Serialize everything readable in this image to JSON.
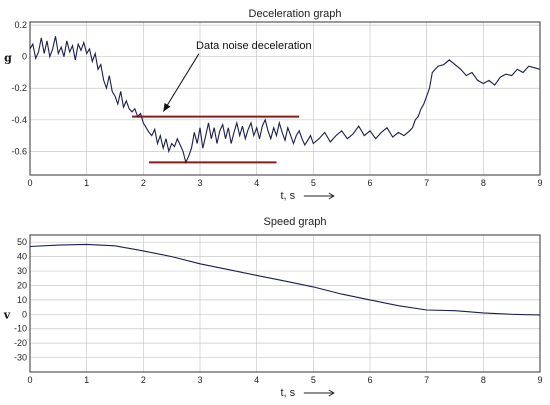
{
  "chart_data": [
    {
      "type": "line",
      "title": "Deceleration graph",
      "ylabel": "g",
      "xlabel": "t, s",
      "xlim": [
        0,
        9
      ],
      "ylim": [
        -0.75,
        0.22
      ],
      "x_ticks": [
        0,
        1,
        2,
        3,
        4,
        5,
        6,
        7,
        8,
        9
      ],
      "y_ticks": [
        0.2,
        0,
        -0.2,
        -0.4,
        -0.6
      ],
      "y_tick_labels": [
        "0.2",
        "0",
        "-0.2",
        "-0.4",
        "-0.6"
      ],
      "grid": true,
      "line_color": "#1a1f4e",
      "series": [
        {
          "x": [
            0,
            0.05,
            0.1,
            0.15,
            0.2,
            0.25,
            0.3,
            0.35,
            0.4,
            0.45,
            0.5,
            0.55,
            0.6,
            0.65,
            0.7,
            0.75,
            0.8,
            0.85,
            0.9,
            0.95,
            1.0,
            1.05,
            1.1,
            1.15,
            1.2,
            1.25,
            1.3,
            1.35,
            1.4,
            1.45,
            1.5,
            1.55,
            1.6,
            1.65,
            1.7,
            1.75,
            1.8,
            1.85,
            1.9,
            1.95,
            2.0,
            2.05,
            2.1,
            2.15,
            2.2,
            2.25,
            2.3,
            2.35,
            2.4,
            2.45,
            2.5,
            2.55,
            2.6,
            2.65,
            2.7,
            2.75,
            2.8,
            2.85,
            2.9,
            2.95,
            3.0,
            3.05,
            3.1,
            3.15,
            3.2,
            3.25,
            3.3,
            3.35,
            3.4,
            3.45,
            3.5,
            3.55,
            3.6,
            3.65,
            3.7,
            3.75,
            3.8,
            3.85,
            3.9,
            3.95,
            4.0,
            4.05,
            4.1,
            4.15,
            4.2,
            4.25,
            4.3,
            4.35,
            4.4,
            4.45,
            4.5,
            4.55,
            4.6,
            4.65,
            4.7,
            4.75,
            4.8,
            4.85,
            4.9,
            4.95,
            5.0,
            5.1,
            5.2,
            5.3,
            5.4,
            5.5,
            5.6,
            5.7,
            5.8,
            5.9,
            6.0,
            6.1,
            6.2,
            6.3,
            6.4,
            6.5,
            6.6,
            6.7,
            6.75,
            6.8,
            6.85,
            6.9,
            6.95,
            7.0,
            7.05,
            7.1,
            7.2,
            7.3,
            7.4,
            7.5,
            7.6,
            7.7,
            7.8,
            7.9,
            8.0,
            8.1,
            8.2,
            8.3,
            8.4,
            8.5,
            8.6,
            8.7,
            8.8,
            8.9,
            9.0
          ],
          "y": [
            0.05,
            0.08,
            -0.01,
            0.03,
            0.12,
            0.02,
            0.1,
            0.0,
            0.05,
            0.13,
            0.02,
            0.06,
            0.0,
            0.1,
            0.03,
            0.07,
            -0.02,
            0.08,
            0.04,
            0.09,
            0.02,
            0.05,
            -0.03,
            0.02,
            -0.08,
            -0.05,
            -0.15,
            -0.2,
            -0.12,
            -0.22,
            -0.25,
            -0.3,
            -0.22,
            -0.32,
            -0.28,
            -0.33,
            -0.35,
            -0.33,
            -0.38,
            -0.36,
            -0.42,
            -0.45,
            -0.48,
            -0.5,
            -0.46,
            -0.55,
            -0.5,
            -0.58,
            -0.52,
            -0.6,
            -0.55,
            -0.57,
            -0.52,
            -0.56,
            -0.6,
            -0.67,
            -0.63,
            -0.58,
            -0.48,
            -0.55,
            -0.45,
            -0.58,
            -0.5,
            -0.42,
            -0.52,
            -0.45,
            -0.55,
            -0.47,
            -0.43,
            -0.52,
            -0.45,
            -0.55,
            -0.48,
            -0.42,
            -0.5,
            -0.44,
            -0.52,
            -0.46,
            -0.42,
            -0.5,
            -0.45,
            -0.52,
            -0.44,
            -0.4,
            -0.47,
            -0.52,
            -0.45,
            -0.5,
            -0.42,
            -0.48,
            -0.53,
            -0.45,
            -0.5,
            -0.55,
            -0.5,
            -0.47,
            -0.52,
            -0.56,
            -0.53,
            -0.5,
            -0.55,
            -0.52,
            -0.48,
            -0.54,
            -0.5,
            -0.47,
            -0.52,
            -0.49,
            -0.44,
            -0.5,
            -0.47,
            -0.52,
            -0.48,
            -0.45,
            -0.51,
            -0.48,
            -0.5,
            -0.47,
            -0.45,
            -0.4,
            -0.38,
            -0.33,
            -0.3,
            -0.25,
            -0.2,
            -0.1,
            -0.06,
            -0.05,
            -0.02,
            -0.05,
            -0.08,
            -0.12,
            -0.1,
            -0.15,
            -0.17,
            -0.15,
            -0.18,
            -0.13,
            -0.11,
            -0.12,
            -0.08,
            -0.1,
            -0.06,
            -0.07,
            -0.08
          ]
        }
      ],
      "annotation": {
        "text": "Data noise deceleration",
        "arrow_to": [
          2.0,
          -0.38
        ],
        "text_at": [
          3.95,
          0.05
        ]
      },
      "reference_lines": [
        {
          "x": [
            1.8,
            4.75
          ],
          "y": -0.38,
          "color": "#8b1a1a"
        },
        {
          "x": [
            2.1,
            4.35
          ],
          "y": -0.67,
          "color": "#8b1a1a"
        }
      ]
    },
    {
      "type": "line",
      "title": "Speed graph",
      "ylabel": "v",
      "xlabel": "t, s",
      "xlim": [
        0,
        9
      ],
      "ylim": [
        -40,
        55
      ],
      "x_ticks": [
        0,
        1,
        2,
        3,
        4,
        5,
        6,
        7,
        8,
        9
      ],
      "y_ticks": [
        50,
        40,
        30,
        20,
        10,
        0,
        -10,
        -20,
        -30
      ],
      "y_tick_labels": [
        "50",
        "40",
        "30",
        "20",
        "10",
        "0",
        "-10",
        "-20",
        "-30"
      ],
      "grid": true,
      "line_color": "#1a1f4e",
      "series": [
        {
          "x": [
            0,
            0.5,
            1.0,
            1.5,
            2.0,
            2.5,
            3.0,
            3.5,
            4.0,
            4.5,
            5.0,
            5.5,
            6.0,
            6.5,
            7.0,
            7.5,
            8.0,
            8.5,
            9.0
          ],
          "y": [
            47,
            48,
            48.5,
            47.5,
            44,
            40,
            35,
            31,
            27,
            23,
            19,
            14,
            10,
            6,
            3,
            2.5,
            1,
            0,
            -0.5
          ]
        }
      ]
    }
  ]
}
